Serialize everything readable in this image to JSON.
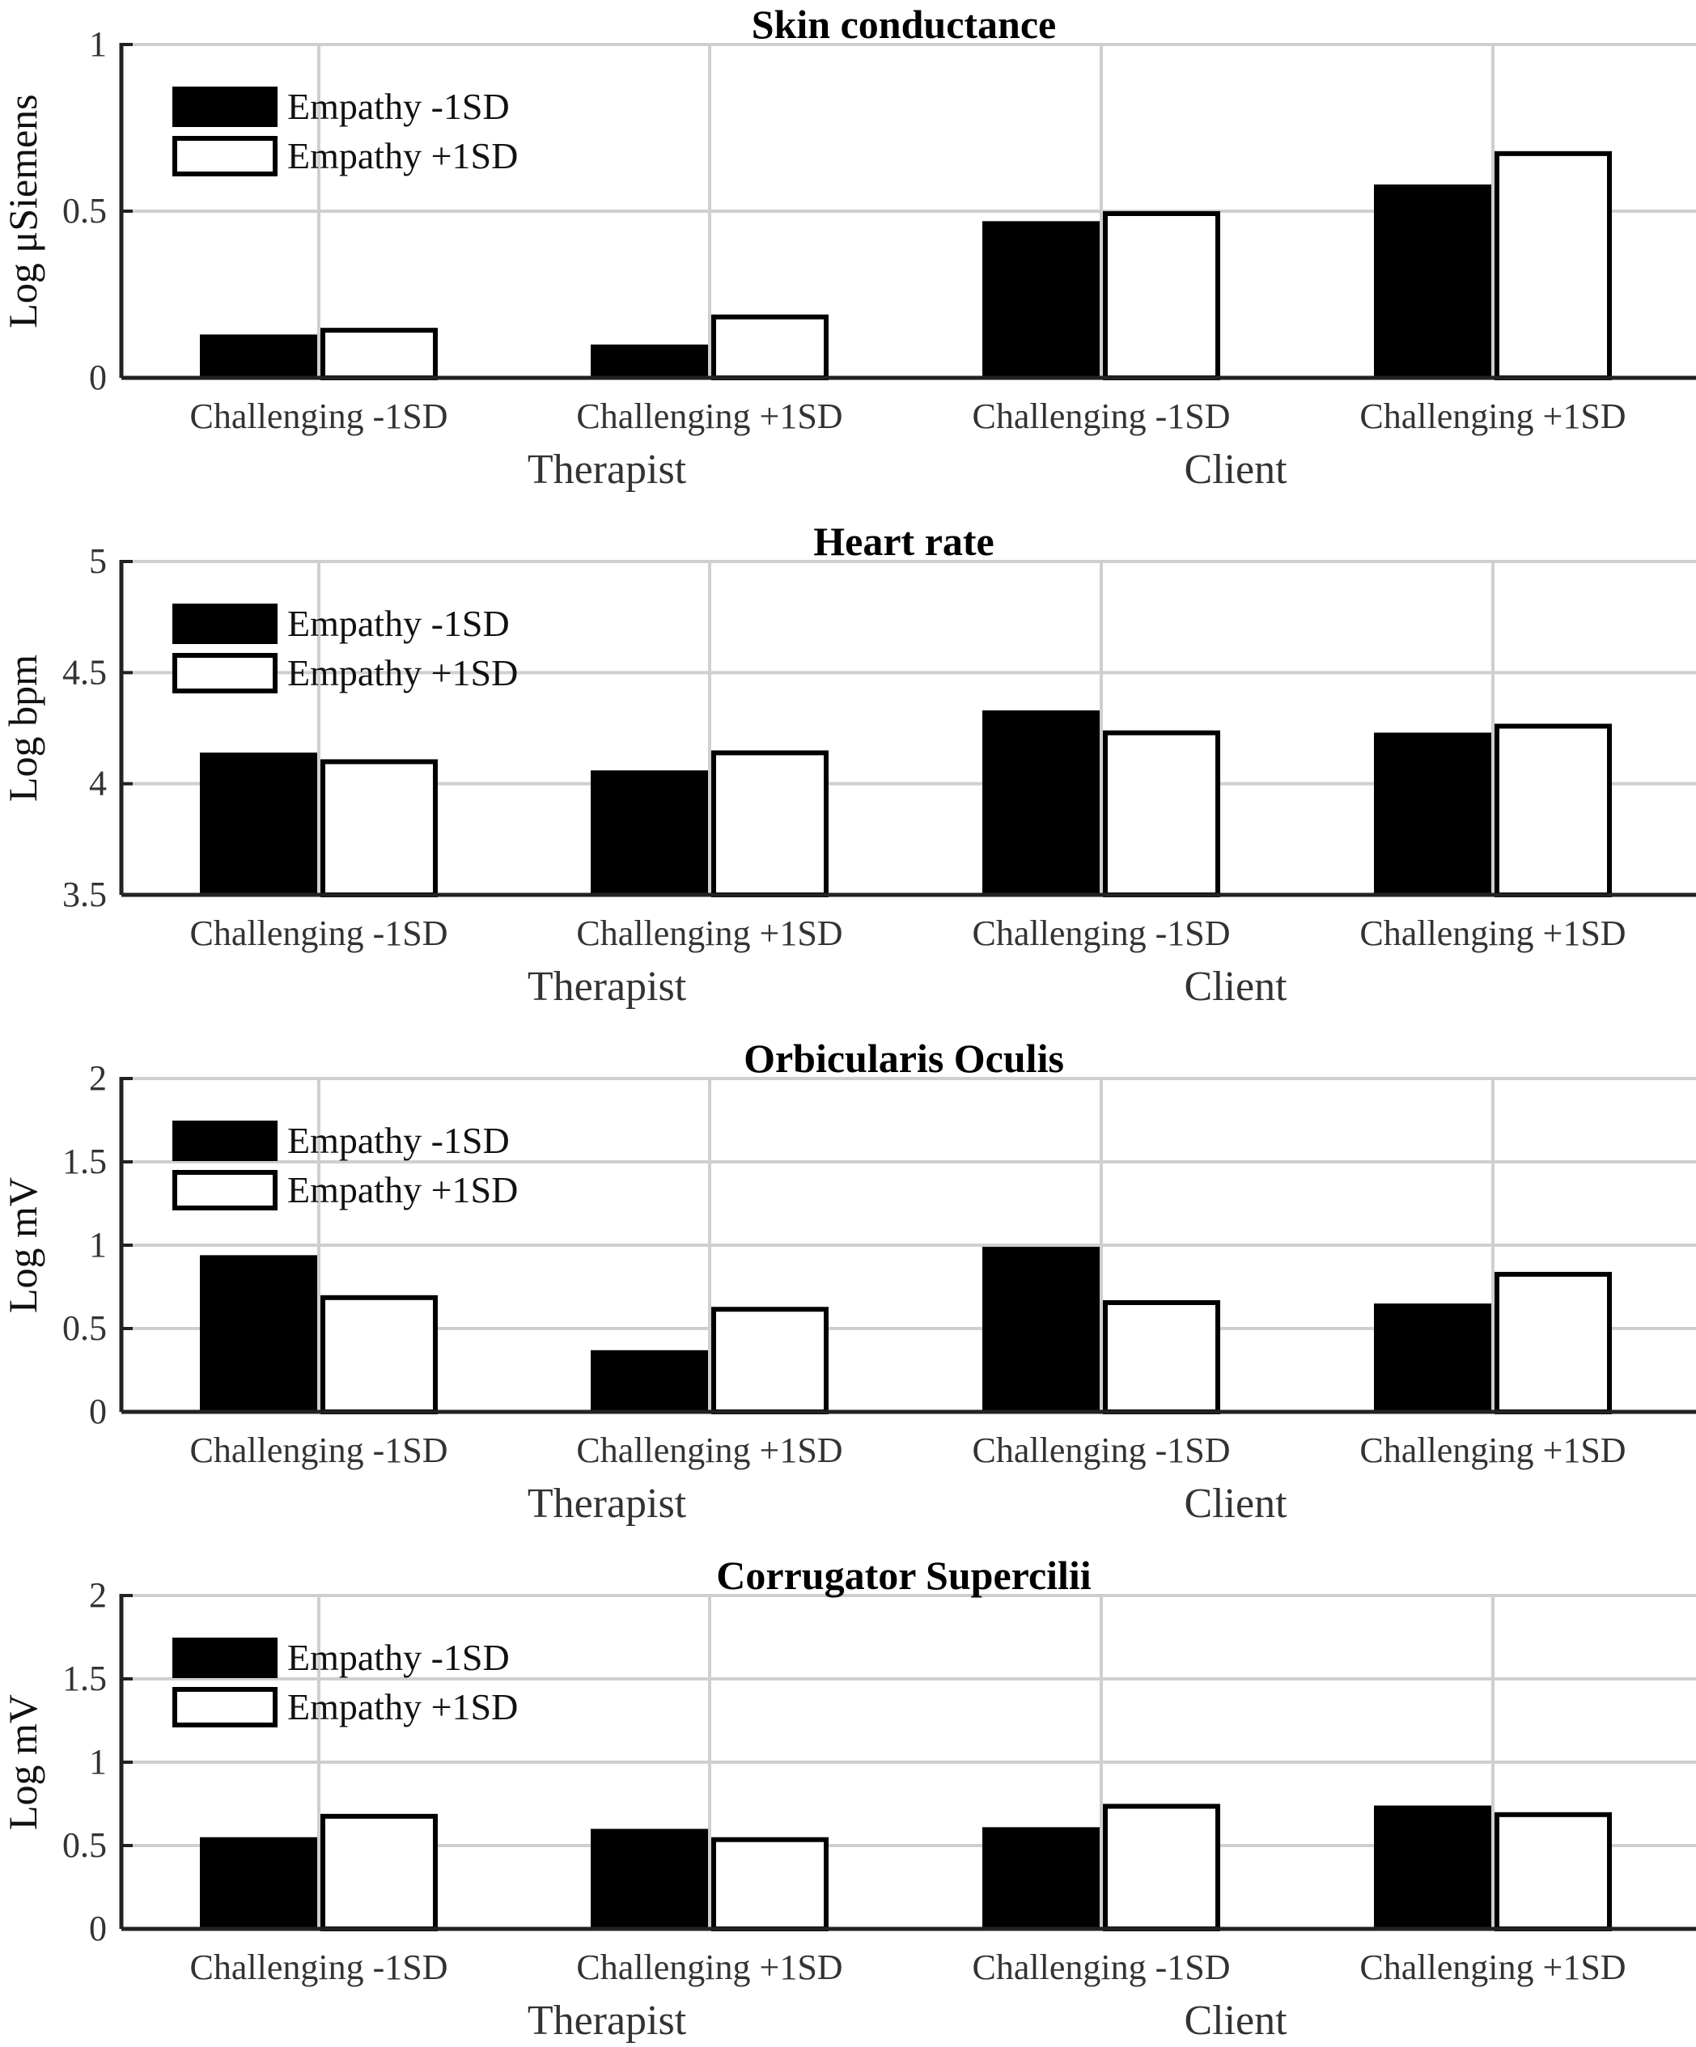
{
  "figure": {
    "group_labels": [
      "Therapist",
      "Client"
    ]
  },
  "chart_data": [
    {
      "type": "bar",
      "title": "Skin conductance",
      "ylabel": "Log μSiemens",
      "xlabel": "",
      "ylim": [
        0,
        1
      ],
      "yticks": [
        "0",
        "0.5",
        "1"
      ],
      "ytick_values": [
        0,
        0.5,
        1
      ],
      "categories": [
        "Challenging -1SD",
        "Challenging +1SD",
        "Challenging -1SD",
        "Challenging +1SD"
      ],
      "groups": [
        "Therapist",
        "Client"
      ],
      "grid": true,
      "legend": "top-left",
      "series": [
        {
          "name": "Empathy -1SD",
          "values": [
            0.13,
            0.1,
            0.47,
            0.58
          ]
        },
        {
          "name": "Empathy +1SD",
          "values": [
            0.15,
            0.19,
            0.5,
            0.68
          ]
        }
      ]
    },
    {
      "type": "bar",
      "title": "Heart rate",
      "ylabel": "Log bpm",
      "xlabel": "",
      "ylim": [
        3.5,
        5
      ],
      "yticks": [
        "3.5",
        "4",
        "4.5",
        "5"
      ],
      "ytick_values": [
        3.5,
        4,
        4.5,
        5
      ],
      "categories": [
        "Challenging -1SD",
        "Challenging +1SD",
        "Challenging -1SD",
        "Challenging +1SD"
      ],
      "groups": [
        "Therapist",
        "Client"
      ],
      "grid": true,
      "legend": "top-left",
      "series": [
        {
          "name": "Empathy -1SD",
          "values": [
            4.14,
            4.06,
            4.33,
            4.23
          ]
        },
        {
          "name": "Empathy +1SD",
          "values": [
            4.11,
            4.15,
            4.24,
            4.27
          ]
        }
      ]
    },
    {
      "type": "bar",
      "title": "Orbicularis Oculis",
      "ylabel": "Log mV",
      "xlabel": "",
      "ylim": [
        0,
        2
      ],
      "yticks": [
        "0",
        "0.5",
        "1",
        "1.5",
        "2"
      ],
      "ytick_values": [
        0,
        0.5,
        1,
        1.5,
        2
      ],
      "categories": [
        "Challenging -1SD",
        "Challenging +1SD",
        "Challenging -1SD",
        "Challenging +1SD"
      ],
      "groups": [
        "Therapist",
        "Client"
      ],
      "grid": true,
      "legend": "top-left",
      "series": [
        {
          "name": "Empathy -1SD",
          "values": [
            0.94,
            0.37,
            0.99,
            0.65
          ]
        },
        {
          "name": "Empathy +1SD",
          "values": [
            0.7,
            0.63,
            0.67,
            0.84
          ]
        }
      ]
    },
    {
      "type": "bar",
      "title": "Corrugator Supercilii",
      "ylabel": "Log mV",
      "xlabel": "",
      "ylim": [
        0,
        2
      ],
      "yticks": [
        "0",
        "0.5",
        "1",
        "1.5",
        "2"
      ],
      "ytick_values": [
        0,
        0.5,
        1,
        1.5,
        2
      ],
      "categories": [
        "Challenging -1SD",
        "Challenging +1SD",
        "Challenging -1SD",
        "Challenging +1SD"
      ],
      "groups": [
        "Therapist",
        "Client"
      ],
      "grid": true,
      "legend": "top-left",
      "series": [
        {
          "name": "Empathy -1SD",
          "values": [
            0.55,
            0.6,
            0.61,
            0.74
          ]
        },
        {
          "name": "Empathy +1SD",
          "values": [
            0.69,
            0.55,
            0.75,
            0.7
          ]
        }
      ]
    }
  ]
}
